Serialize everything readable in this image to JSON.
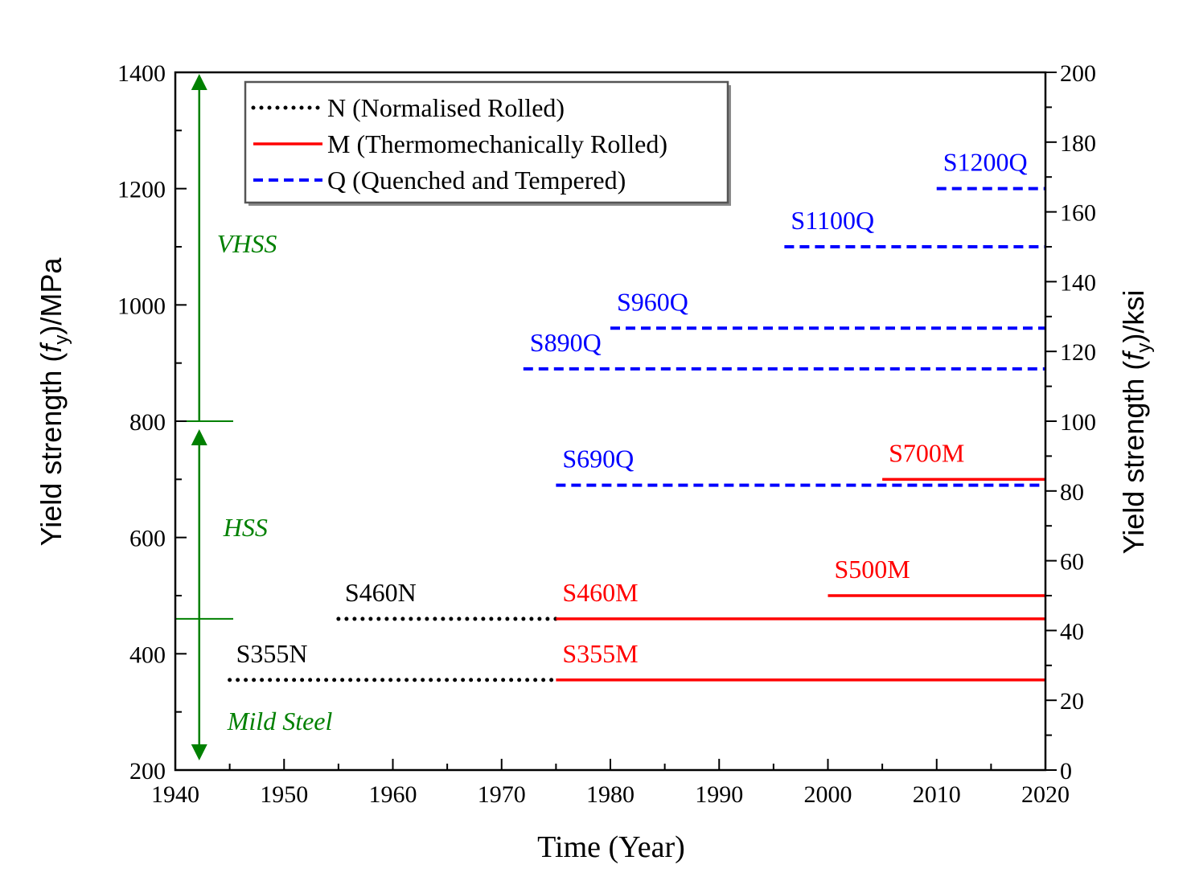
{
  "chart_data": {
    "type": "line",
    "xlabel": "Time (Year)",
    "ylabel": {
      "prefix": "Yield strength (",
      "symbol": "f",
      "subscript": "y",
      "suffix": ")/MPa"
    },
    "ylabel_right": {
      "prefix": "Yield strength (",
      "symbol": "f",
      "subscript": "y",
      "suffix": ")/ksi"
    },
    "xlim": [
      1940,
      2020
    ],
    "ylim": [
      200,
      1400
    ],
    "ylim_right": [
      0,
      200
    ],
    "x_ticks": [
      1940,
      1950,
      1960,
      1970,
      1980,
      1990,
      2000,
      2010,
      2020
    ],
    "y_ticks": [
      200,
      400,
      600,
      800,
      1000,
      1200,
      1400
    ],
    "y_ticks_right": [
      0,
      20,
      40,
      60,
      80,
      100,
      120,
      140,
      160,
      180,
      200
    ],
    "legend": {
      "position": "top-left",
      "entries": [
        {
          "key": "N",
          "label": "N (Normalised Rolled)",
          "style": "dotted",
          "color": "#000000"
        },
        {
          "key": "M",
          "label": "M (Thermomechanically Rolled)",
          "style": "solid",
          "color": "#ff0000"
        },
        {
          "key": "Q",
          "label": "Q (Quenched and Tempered)",
          "style": "dashed",
          "color": "#0000ff"
        }
      ]
    },
    "series": [
      {
        "name": "S355N",
        "category": "N",
        "x": [
          1945,
          1975
        ],
        "y": 355
      },
      {
        "name": "S460N",
        "category": "N",
        "x": [
          1955,
          1975
        ],
        "y": 460
      },
      {
        "name": "S355M",
        "category": "M",
        "x": [
          1975,
          2020
        ],
        "y": 355
      },
      {
        "name": "S460M",
        "category": "M",
        "x": [
          1975,
          2020
        ],
        "y": 460
      },
      {
        "name": "S500M",
        "category": "M",
        "x": [
          2000,
          2020
        ],
        "y": 500
      },
      {
        "name": "S700M",
        "category": "M",
        "x": [
          2005,
          2020
        ],
        "y": 700
      },
      {
        "name": "S690Q",
        "category": "Q",
        "x": [
          1975,
          2020
        ],
        "y": 690
      },
      {
        "name": "S890Q",
        "category": "Q",
        "x": [
          1972,
          2020
        ],
        "y": 890
      },
      {
        "name": "S960Q",
        "category": "Q",
        "x": [
          1980,
          2020
        ],
        "y": 960
      },
      {
        "name": "S1100Q",
        "category": "Q",
        "x": [
          1996,
          2020
        ],
        "y": 1100
      },
      {
        "name": "S1200Q",
        "category": "Q",
        "x": [
          2010,
          2020
        ],
        "y": 1200
      }
    ],
    "regions": [
      {
        "name": "Mild Steel",
        "y_range": [
          200,
          460
        ]
      },
      {
        "name": "HSS",
        "y_range": [
          460,
          800
        ]
      },
      {
        "name": "VHSS",
        "y_range": [
          800,
          1400
        ]
      }
    ],
    "region_arrow_x": 1942.2,
    "region_boundaries": [
      460,
      800
    ],
    "colors": {
      "N": "#000000",
      "M": "#ff0000",
      "Q": "#0000ff",
      "region": "#008000"
    }
  }
}
